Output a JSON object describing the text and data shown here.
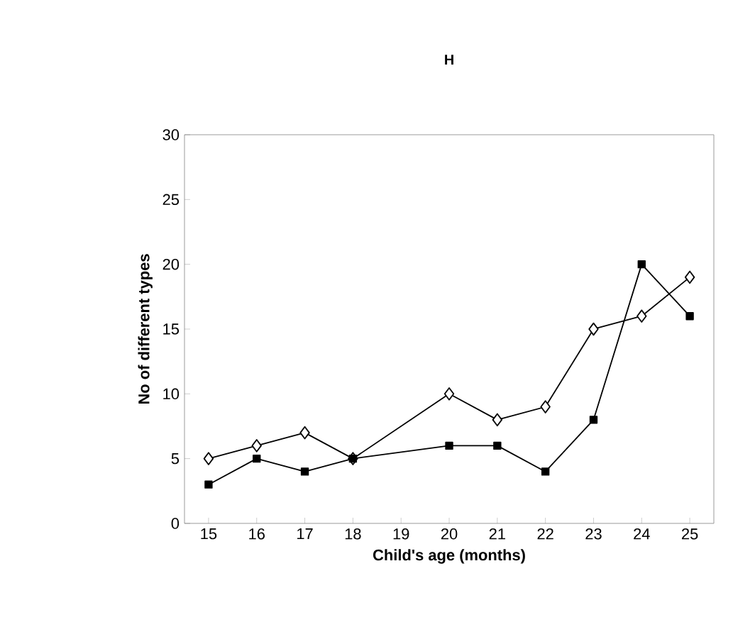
{
  "chart_data": {
    "type": "line",
    "title": "H",
    "xlabel": "Child's age (months)",
    "ylabel": "No of different types",
    "categories": [
      "15",
      "16",
      "17",
      "18",
      "19",
      "20",
      "21",
      "22",
      "23",
      "24",
      "25"
    ],
    "series": [
      {
        "color": "#000000",
        "marker": "diamond",
        "values": [
          5,
          6,
          7,
          5,
          null,
          10,
          8,
          9,
          15,
          16,
          19
        ]
      },
      {
        "color": "#000000",
        "marker": "square",
        "values": [
          3,
          5,
          4,
          5,
          null,
          6,
          6,
          4,
          8,
          20,
          16
        ]
      }
    ],
    "ylim": [
      0,
      30
    ],
    "yticks": [
      0,
      5,
      10,
      15,
      20,
      25,
      30
    ],
    "grid": false
  }
}
